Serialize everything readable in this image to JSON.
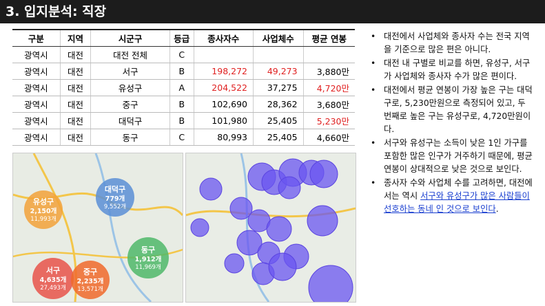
{
  "header": {
    "title": "3. 입지분석: 직장"
  },
  "table": {
    "columns": [
      "구분",
      "지역",
      "시군구",
      "등급",
      "종사자수",
      "사업체수",
      "평균 연봉"
    ],
    "rows": [
      [
        "광역시",
        "대전",
        "대전 전체",
        "C",
        "",
        "",
        ""
      ],
      [
        "광역시",
        "대전",
        "서구",
        "B",
        "198,272",
        "49,273",
        "3,880만"
      ],
      [
        "광역시",
        "대전",
        "유성구",
        "A",
        "204,522",
        "37,275",
        "4,720만"
      ],
      [
        "광역시",
        "대전",
        "중구",
        "B",
        "102,690",
        "28,362",
        "3,680만"
      ],
      [
        "광역시",
        "대전",
        "대덕구",
        "B",
        "101,980",
        "25,405",
        "5,230만"
      ],
      [
        "광역시",
        "대전",
        "동구",
        "C",
        "80,993",
        "25,405",
        "4,660만"
      ]
    ],
    "highlight_color": "#e02020",
    "highlighted": [
      [
        1,
        4
      ],
      [
        1,
        5
      ],
      [
        2,
        4
      ],
      [
        2,
        6
      ],
      [
        4,
        6
      ]
    ]
  },
  "map_labels": [
    {
      "name": "대덕구",
      "a": "779개",
      "b": "9,552개"
    },
    {
      "name": "유성구",
      "a": "2,150개",
      "b": "11,993개"
    },
    {
      "name": "동구",
      "a": "1,912개",
      "b": "11,969개"
    },
    {
      "name": "서구",
      "a": "4,635개",
      "b": "27,493개"
    },
    {
      "name": "중구",
      "a": "2,235개",
      "b": "13,571개"
    }
  ],
  "bullets": [
    "대전에서 사업체와 종사자 수는 전국 지역을 기준으로 많은 편은 아니다.",
    "대전 내 구별로 비교를 하면, 유성구, 서구가 사업체와 종사자 수가 많은 편이다.",
    "대전에서 평균 연봉이 가장 높은 구는 대덕구로, 5,230만원으로 측정되어 있고, 두 번째로 높은 구는 유성구로, 4,720만원이다.",
    "서구와 유성구는 소득이 낮은 1인 가구를 포함한 많은 인구가 거주하기 때문에, 평균 연봉이 상대적으로 낮은 것으로 보인다."
  ],
  "last_bullet": {
    "before": "종사자 수와 사업체 수를 고려하면, 대전에서는 역시 ",
    "link": "서구와 유성구가 많은 사람들이 선호하는 동네 인 것으로 보인다",
    "after": "."
  }
}
